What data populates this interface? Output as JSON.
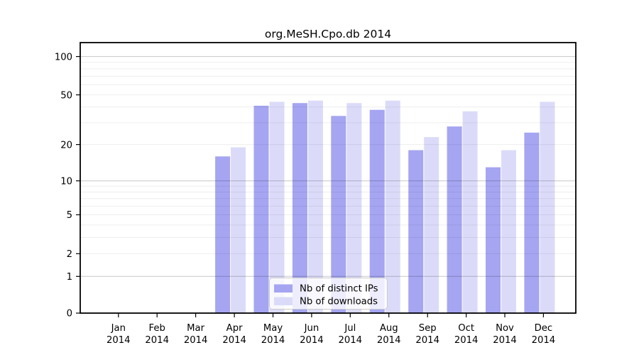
{
  "figure": {
    "title": "org.MeSH.Cpo.db 2014",
    "background": "#ffffff"
  },
  "legend": {
    "position": "lower center",
    "items": [
      {
        "label": "Nb of distinct IPs",
        "color": "#a5a5f2"
      },
      {
        "label": "Nb of downloads",
        "color": "#dbdbf9"
      }
    ]
  },
  "x_axis": {
    "year": "2014",
    "months": [
      "Jan",
      "Feb",
      "Mar",
      "Apr",
      "May",
      "Jun",
      "Jul",
      "Aug",
      "Sep",
      "Oct",
      "Nov",
      "Dec"
    ]
  },
  "y_axis": {
    "ticks": [
      0,
      1,
      2,
      5,
      10,
      20,
      50,
      100
    ]
  },
  "chart_data": {
    "type": "bar",
    "title": "org.MeSH.Cpo.db 2014",
    "categories": [
      "Jan 2014",
      "Feb 2014",
      "Mar 2014",
      "Apr 2014",
      "May 2014",
      "Jun 2014",
      "Jul 2014",
      "Aug 2014",
      "Sep 2014",
      "Oct 2014",
      "Nov 2014",
      "Dec 2014"
    ],
    "series": [
      {
        "name": "Nb of distinct IPs",
        "color": "#a5a5f2",
        "values": [
          0,
          0,
          0,
          16,
          41,
          43,
          34,
          38,
          18,
          28,
          13,
          25
        ]
      },
      {
        "name": "Nb of downloads",
        "color": "#dbdbf9",
        "values": [
          0,
          0,
          0,
          19,
          44,
          45,
          43,
          45,
          23,
          37,
          18,
          44
        ]
      }
    ],
    "y_scale": "log10(1+v)",
    "y_ticks": [
      0,
      1,
      2,
      5,
      10,
      20,
      50,
      100
    ],
    "major_gridlines": [
      1,
      10,
      100
    ],
    "minor_gridlines": [
      2,
      3,
      4,
      5,
      6,
      7,
      8,
      9,
      20,
      30,
      40,
      50,
      60,
      70,
      80,
      90
    ],
    "ylim": [
      0,
      125
    ],
    "grid": "on",
    "legend_position": "lower center",
    "xlabel": "",
    "ylabel": ""
  }
}
